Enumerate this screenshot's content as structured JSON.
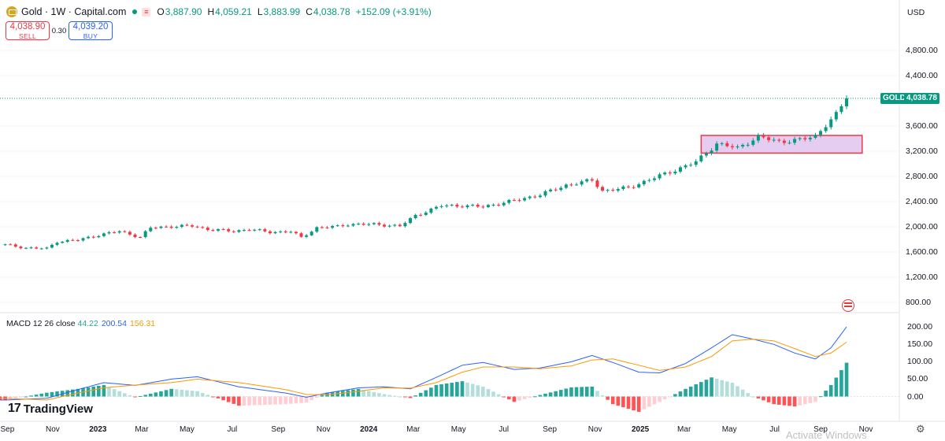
{
  "header": {
    "symbol": "Gold · 1W · Capital.com",
    "o_label": "O",
    "o_value": "3,887.90",
    "h_label": "H",
    "h_value": "4,059.21",
    "l_label": "L",
    "l_value": "3,883.99",
    "c_label": "C",
    "c_value": "4,038.78",
    "change": "+152.09 (+3.91%)"
  },
  "trade": {
    "sell_price": "4,038.90",
    "sell_label": "SELL",
    "spread": "0.30",
    "buy_price": "4,039.20",
    "buy_label": "BUY"
  },
  "price_scale": {
    "currency": "USD",
    "labels": [
      "4,800.00",
      "4,400.00",
      "3,600.00",
      "3,200.00",
      "2,800.00",
      "2,400.00",
      "2,000.00",
      "1,600.00",
      "1,200.00",
      "800.00"
    ],
    "symbol_tag": "GOLD",
    "last_price": "4,038.78"
  },
  "macd": {
    "legend": "MACD 12 26 close",
    "hist": "44.22",
    "macd": "200.54",
    "signal": "156.31",
    "scale_labels": [
      "200.00",
      "150.00",
      "100.00",
      "50.00",
      "0.00"
    ]
  },
  "time_axis": [
    {
      "text": "Sep",
      "bold": false
    },
    {
      "text": "Nov",
      "bold": false
    },
    {
      "text": "2023",
      "bold": true
    },
    {
      "text": "Mar",
      "bold": false
    },
    {
      "text": "May",
      "bold": false
    },
    {
      "text": "Jul",
      "bold": false
    },
    {
      "text": "Sep",
      "bold": false
    },
    {
      "text": "Nov",
      "bold": false
    },
    {
      "text": "2024",
      "bold": true
    },
    {
      "text": "Mar",
      "bold": false
    },
    {
      "text": "May",
      "bold": false
    },
    {
      "text": "Jul",
      "bold": false
    },
    {
      "text": "Sep",
      "bold": false
    },
    {
      "text": "Nov",
      "bold": false
    },
    {
      "text": "2025",
      "bold": true
    },
    {
      "text": "Mar",
      "bold": false
    },
    {
      "text": "May",
      "bold": false
    },
    {
      "text": "Jul",
      "bold": false
    },
    {
      "text": "Sep",
      "bold": false
    },
    {
      "text": "Nov",
      "bold": false
    }
  ],
  "brand": {
    "mark": "17",
    "name": "TradingView"
  },
  "watermark": "Activate Windows",
  "colors": {
    "up": "#089981",
    "down": "#f23645",
    "macd": "#2962ff",
    "signal": "#ff9800",
    "zone_fill": "#e1c4ef",
    "zone_border": "#f23645"
  },
  "icons": {
    "symbol": "gold-coin-icon",
    "flag": "us-flag-icon",
    "settings": "gear-icon"
  },
  "chart_data": {
    "type": "candlestick",
    "timeframe": "1W",
    "ylim": [
      700,
      5100
    ],
    "last_close": 4038.78,
    "price_anchors": [
      [
        "2022-08-29",
        1715
      ],
      [
        "2022-09-26",
        1665
      ],
      [
        "2022-10-24",
        1655
      ],
      [
        "2022-11-07",
        1765
      ],
      [
        "2022-12-05",
        1790
      ],
      [
        "2023-01-02",
        1870
      ],
      [
        "2023-01-30",
        1930
      ],
      [
        "2023-02-27",
        1835
      ],
      [
        "2023-03-13",
        1985
      ],
      [
        "2023-04-10",
        2005
      ],
      [
        "2023-05-08",
        2015
      ],
      [
        "2023-05-29",
        1960
      ],
      [
        "2023-07-03",
        1930
      ],
      [
        "2023-07-24",
        1960
      ],
      [
        "2023-08-21",
        1915
      ],
      [
        "2023-09-18",
        1925
      ],
      [
        "2023-10-02",
        1830
      ],
      [
        "2023-10-23",
        1985
      ],
      [
        "2023-11-20",
        2005
      ],
      [
        "2023-12-04",
        2040
      ],
      [
        "2024-01-08",
        2040
      ],
      [
        "2024-02-12",
        2010
      ],
      [
        "2024-03-04",
        2180
      ],
      [
        "2024-04-08",
        2335
      ],
      [
        "2024-05-06",
        2335
      ],
      [
        "2024-06-03",
        2320
      ],
      [
        "2024-07-15",
        2415
      ],
      [
        "2024-08-19",
        2510
      ],
      [
        "2024-09-23",
        2660
      ],
      [
        "2024-10-28",
        2740
      ],
      [
        "2024-11-11",
        2570
      ],
      [
        "2024-12-16",
        2620
      ],
      [
        "2025-01-20",
        2780
      ],
      [
        "2025-02-17",
        2900
      ],
      [
        "2025-03-17",
        3030
      ],
      [
        "2025-04-14",
        3320
      ],
      [
        "2025-05-12",
        3250
      ],
      [
        "2025-06-09",
        3430
      ],
      [
        "2025-07-07",
        3350
      ],
      [
        "2025-08-04",
        3380
      ],
      [
        "2025-08-25",
        3440
      ],
      [
        "2025-09-08",
        3620
      ],
      [
        "2025-09-22",
        3780
      ],
      [
        "2025-10-06",
        4039
      ]
    ],
    "consolidation_zone": {
      "start": "2025-03-24",
      "end": "2025-10-27",
      "low": 3170,
      "high": 3450
    },
    "macd_ylim": [
      -60,
      230
    ],
    "macd_anchors": [
      [
        "2022-08-29",
        -10,
        -5
      ],
      [
        "2022-10-24",
        -5,
        -10
      ],
      [
        "2022-12-05",
        20,
        10
      ],
      [
        "2023-01-09",
        40,
        25
      ],
      [
        "2023-02-20",
        32,
        33
      ],
      [
        "2023-04-10",
        50,
        40
      ],
      [
        "2023-05-15",
        57,
        50
      ],
      [
        "2023-07-10",
        28,
        40
      ],
      [
        "2023-09-11",
        10,
        20
      ],
      [
        "2023-10-09",
        -2,
        6
      ],
      [
        "2023-11-06",
        10,
        5
      ],
      [
        "2023-12-18",
        25,
        15
      ],
      [
        "2024-01-22",
        28,
        25
      ],
      [
        "2024-02-26",
        22,
        24
      ],
      [
        "2024-04-01",
        55,
        40
      ],
      [
        "2024-05-06",
        90,
        70
      ],
      [
        "2024-06-03",
        98,
        85
      ],
      [
        "2024-07-15",
        78,
        85
      ],
      [
        "2024-08-19",
        82,
        80
      ],
      [
        "2024-09-30",
        100,
        88
      ],
      [
        "2024-10-28",
        118,
        105
      ],
      [
        "2024-11-25",
        98,
        108
      ],
      [
        "2024-12-30",
        70,
        90
      ],
      [
        "2025-01-27",
        68,
        75
      ],
      [
        "2025-03-03",
        95,
        85
      ],
      [
        "2025-04-07",
        140,
        115
      ],
      [
        "2025-05-05",
        178,
        160
      ],
      [
        "2025-06-02",
        165,
        165
      ],
      [
        "2025-06-30",
        150,
        160
      ],
      [
        "2025-07-28",
        125,
        138
      ],
      [
        "2025-08-25",
        108,
        115
      ],
      [
        "2025-09-15",
        140,
        125
      ],
      [
        "2025-10-06",
        200.54,
        156.31
      ]
    ]
  }
}
